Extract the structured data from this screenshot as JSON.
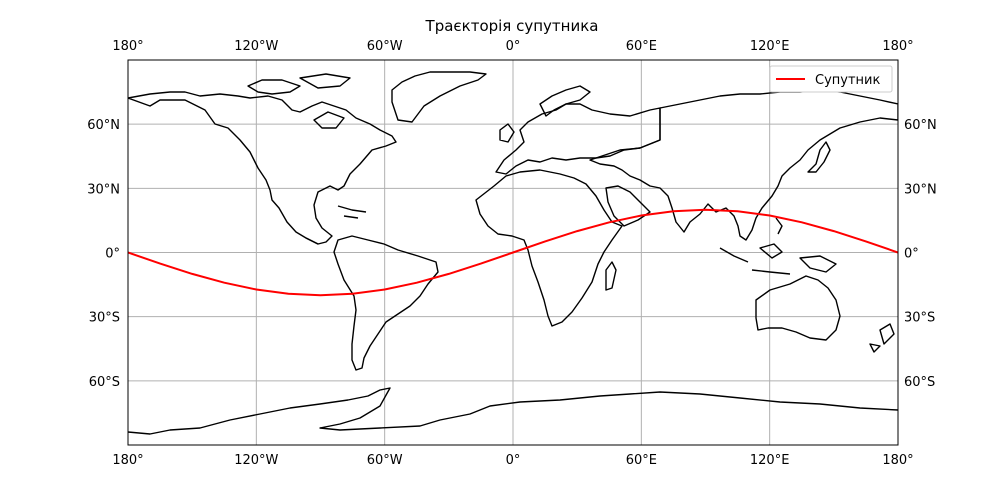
{
  "title": "Траєкторія супутника",
  "chart_data": {
    "type": "line",
    "title": "Траєкторія супутника",
    "projection": "plate-carree",
    "xlim": [
      -180,
      180
    ],
    "ylim": [
      -90,
      90
    ],
    "grid": true,
    "legend_position": "top-right",
    "x_ticks": [
      {
        "value": -180,
        "label": "180°"
      },
      {
        "value": -120,
        "label": "120°W"
      },
      {
        "value": -60,
        "label": "60°W"
      },
      {
        "value": 0,
        "label": "0°"
      },
      {
        "value": 60,
        "label": "60°E"
      },
      {
        "value": 120,
        "label": "120°E"
      },
      {
        "value": 180,
        "label": "180°"
      }
    ],
    "y_ticks": [
      {
        "value": 60,
        "label": "60°N"
      },
      {
        "value": 30,
        "label": "30°N"
      },
      {
        "value": 0,
        "label": "0°"
      },
      {
        "value": -30,
        "label": "30°S"
      },
      {
        "value": -60,
        "label": "60°S"
      }
    ],
    "series": [
      {
        "name": "Супутник",
        "color": "#ff0000",
        "x": [
          -180,
          -165,
          -150,
          -135,
          -120,
          -105,
          -90,
          -75,
          -60,
          -45,
          -30,
          -15,
          0,
          15,
          30,
          45,
          60,
          75,
          90,
          105,
          120,
          135,
          150,
          165,
          180
        ],
        "y": [
          0,
          -5.2,
          -10,
          -14.1,
          -17.3,
          -19.3,
          -20,
          -19.3,
          -17.3,
          -14.1,
          -10,
          -5.2,
          0,
          5.2,
          10,
          14.1,
          17.3,
          19.3,
          20,
          19.3,
          17.3,
          14.1,
          10,
          5.2,
          0
        ]
      }
    ]
  }
}
